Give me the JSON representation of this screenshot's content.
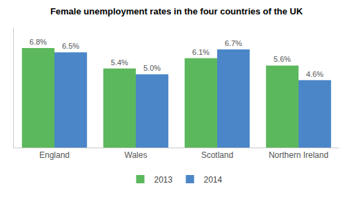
{
  "chart_data": {
    "type": "bar",
    "title": "Female unemployment rates in the four countries of the UK",
    "categories": [
      "England",
      "Wales",
      "Scotland",
      "Northern Ireland"
    ],
    "series": [
      {
        "name": "2013",
        "color": "#5cb85c",
        "values": [
          6.8,
          5.4,
          6.1,
          5.6
        ],
        "value_labels": [
          "6.8%",
          "5.4%",
          "6.1%",
          "5.6%"
        ]
      },
      {
        "name": "2014",
        "color": "#4a86c8",
        "values": [
          6.5,
          5.0,
          6.7,
          4.6
        ],
        "value_labels": [
          "6.5%",
          "5.0%",
          "6.7%",
          "4.6%"
        ]
      }
    ],
    "ylim": [
      0,
      8.2
    ],
    "yticks": [],
    "grid": false,
    "legend": "bottom",
    "data_labels": true,
    "tick_labels": "x"
  }
}
